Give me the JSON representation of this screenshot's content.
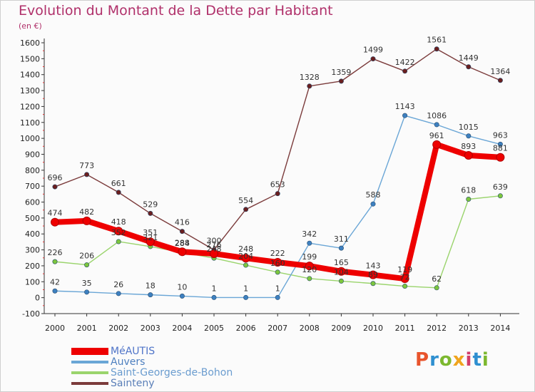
{
  "title": "Evolution du Montant de la Dette par Habitant",
  "subtitle": "(en €)",
  "logo": {
    "text": "Proxiti",
    "colors": [
      "#e8542c",
      "#2e8fd0",
      "#7cb82f",
      "#f0a41c",
      "#d23d6a",
      "#2e8fd0",
      "#7cb82f"
    ]
  },
  "chart_data": {
    "type": "line",
    "title": "Evolution du Montant de la Dette par Habitant",
    "ylabel": "(en €)",
    "xlabel": "",
    "x": [
      "2000",
      "2001",
      "2002",
      "2003",
      "2004",
      "2005",
      "2006",
      "2007",
      "2008",
      "2009",
      "2010",
      "2011",
      "2012",
      "2013",
      "2014"
    ],
    "ylim": [
      -100,
      1600
    ],
    "yticks": [
      -100,
      0,
      100,
      200,
      300,
      400,
      500,
      600,
      700,
      800,
      900,
      1000,
      1100,
      1200,
      1300,
      1400,
      1500,
      1600
    ],
    "grid": false,
    "legend_position": "bottom-left",
    "series": [
      {
        "name": "MéAUTIS",
        "color": "#ee0000",
        "point_color": "#ee0000",
        "values": [
          474,
          482,
          418,
          351,
          288,
          276,
          248,
          222,
          199,
          165,
          143,
          119,
          961,
          893,
          881
        ],
        "labels": [
          "474",
          "482",
          "418",
          "351",
          "288",
          "276",
          "248",
          "222",
          "199",
          "165",
          "143",
          "119",
          "961",
          "893",
          "881"
        ]
      },
      {
        "name": "Auvers",
        "color": "#6aa6d6",
        "point_color": "#3d80c0",
        "values": [
          42,
          35,
          26,
          18,
          10,
          1,
          1,
          1,
          342,
          311,
          588,
          1143,
          1086,
          1015,
          963
        ],
        "labels": [
          "42",
          "35",
          "26",
          "18",
          "10",
          "1",
          "1",
          "1",
          "342",
          "311",
          "588",
          "1143",
          "1086",
          "1015",
          "963"
        ]
      },
      {
        "name": "Saint-Georges-de-Bohon",
        "color": "#9ad46c",
        "point_color": "#7cc63d",
        "values": [
          226,
          206,
          352,
          321,
          284,
          248,
          204,
          160,
          120,
          104,
          89,
          72,
          62,
          618,
          639
        ],
        "labels": [
          "226",
          "206",
          "352",
          "321",
          "284",
          "248",
          "204",
          "160",
          "120",
          "104",
          "89",
          "72",
          "62",
          "618",
          "639"
        ]
      },
      {
        "name": "Sainteny",
        "color": "#7b3b3b",
        "point_color": "#6b1f1f",
        "values": [
          696,
          773,
          661,
          529,
          416,
          300,
          554,
          653,
          1328,
          1359,
          1499,
          1422,
          1561,
          1449,
          1364
        ],
        "labels": [
          "696",
          "773",
          "661",
          "529",
          "416",
          "300",
          "554",
          "653",
          "1328",
          "1359",
          "1499",
          "1422",
          "1561",
          "1449",
          "1364"
        ]
      }
    ]
  }
}
